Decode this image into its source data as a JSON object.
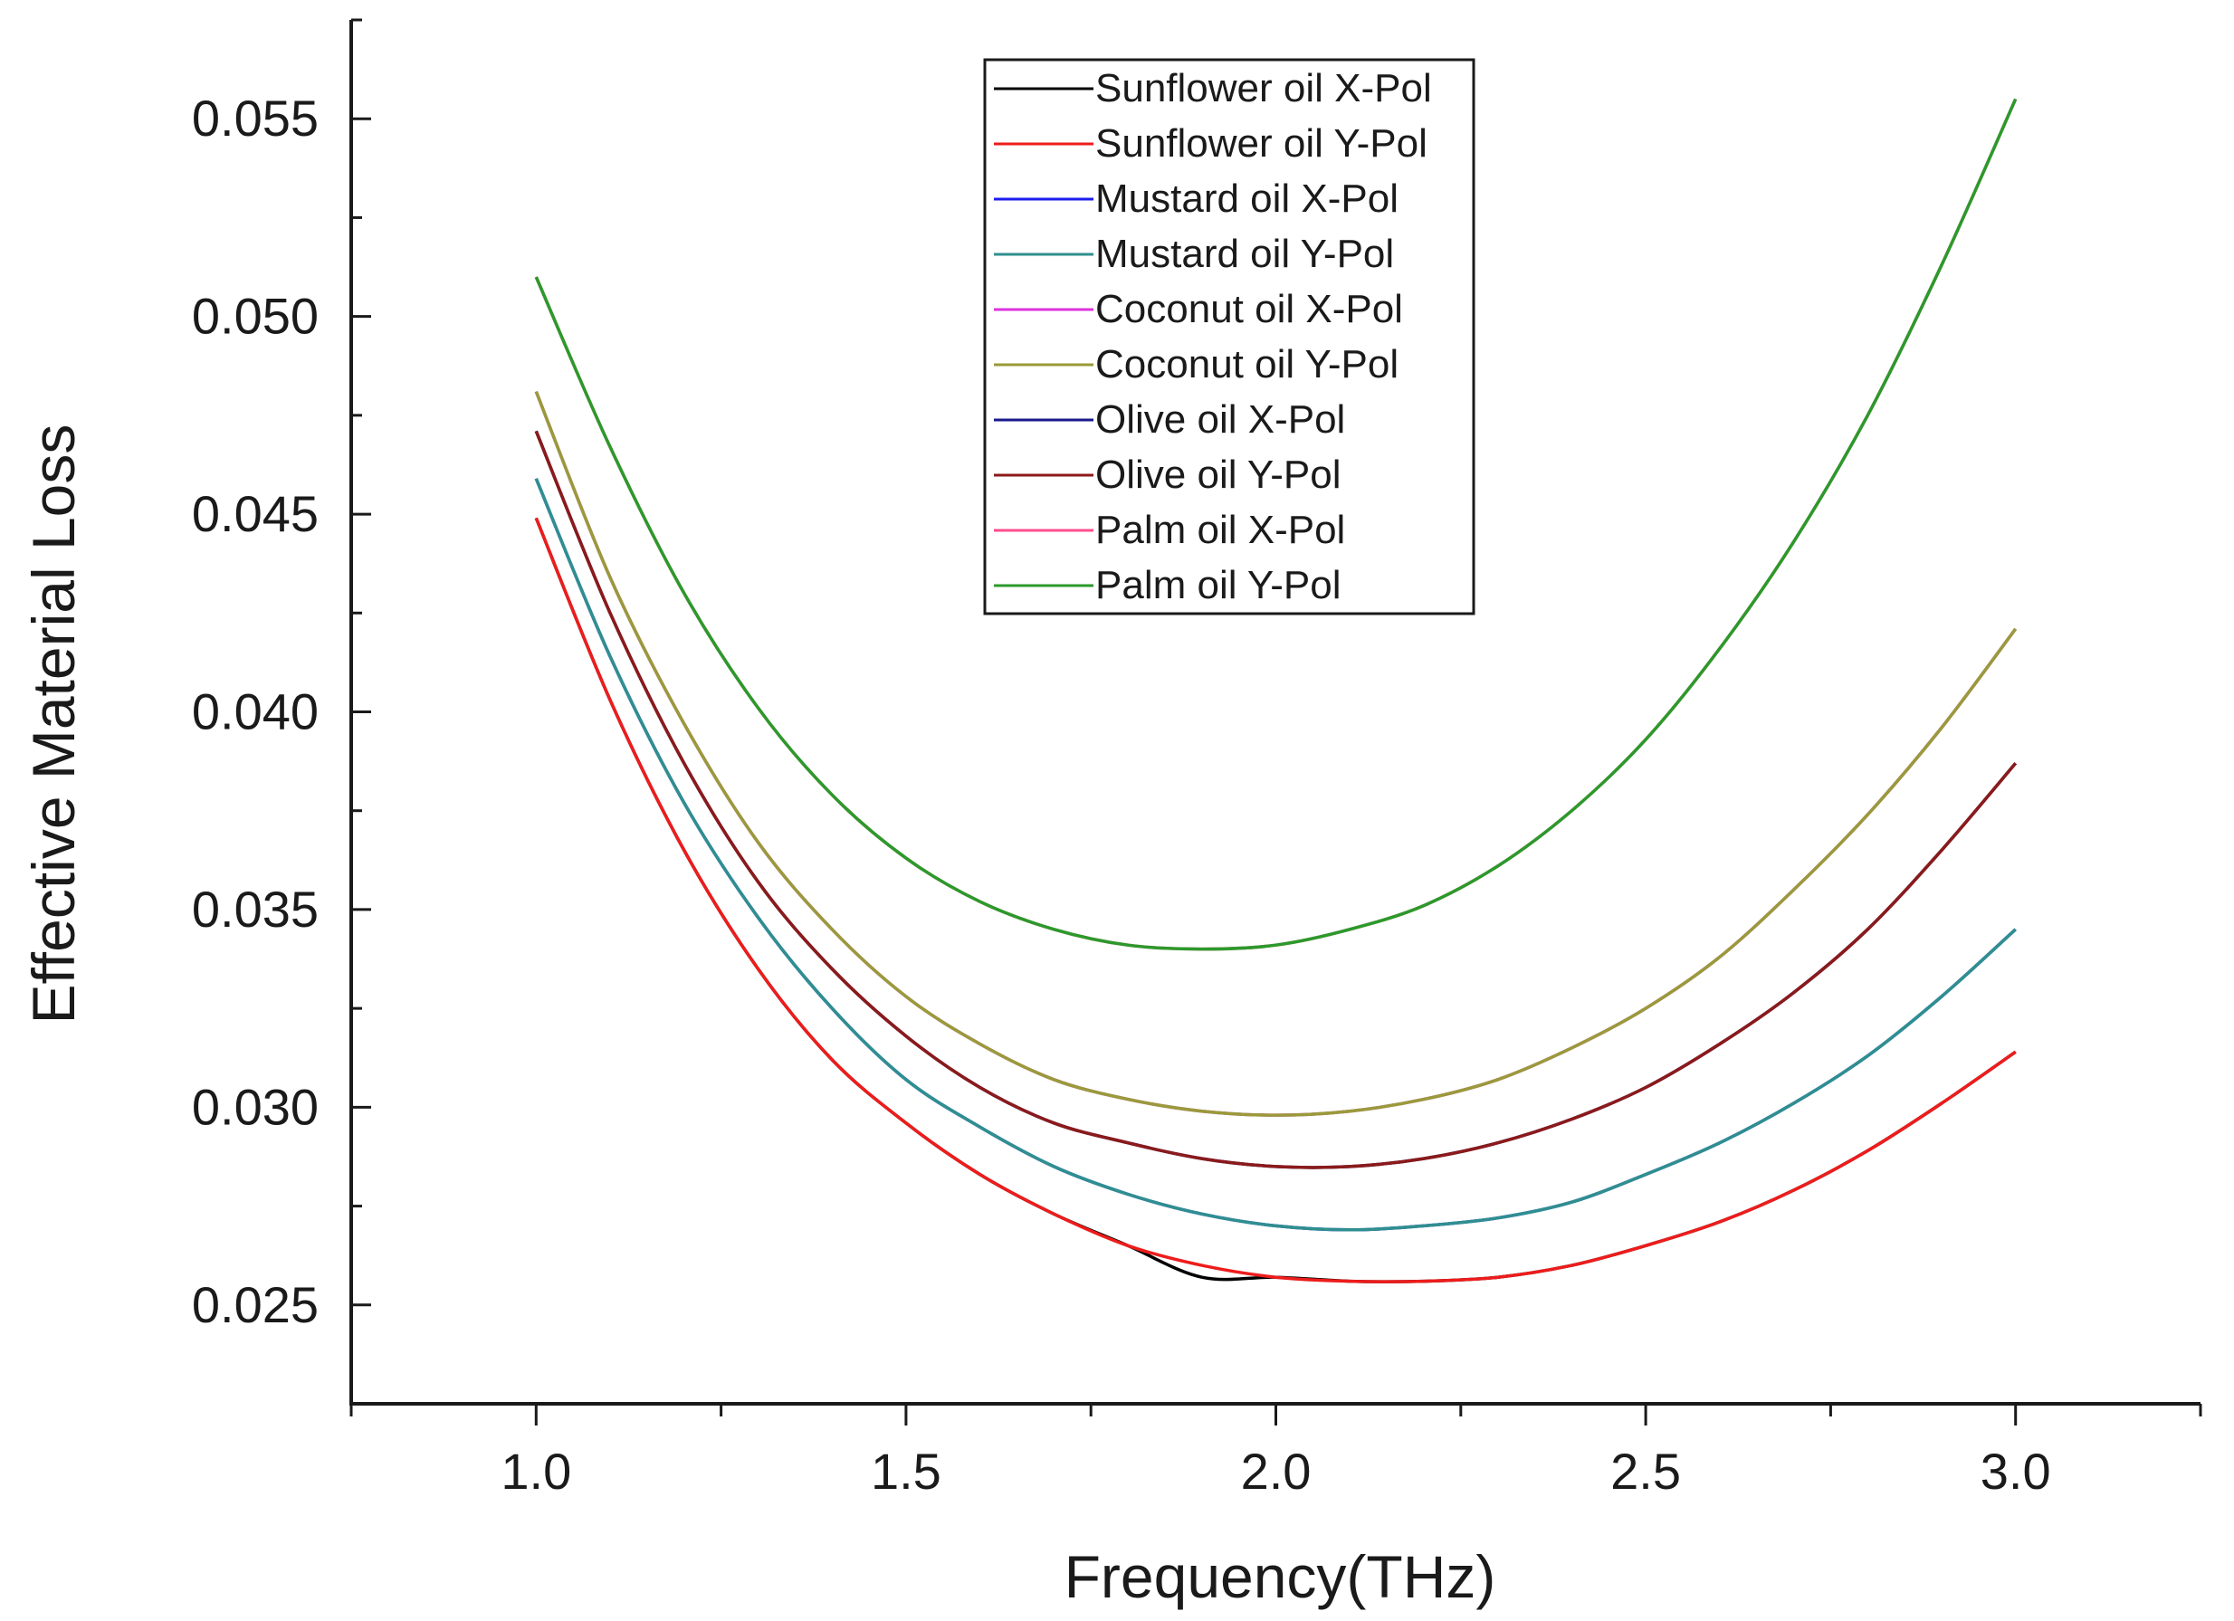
{
  "chart_data": {
    "type": "line",
    "title": "",
    "xlabel": "Frequency(THz)",
    "ylabel": "Effective Material Loss",
    "xlim": [
      0.75,
      3.25
    ],
    "ylim": [
      0.0225,
      0.0575
    ],
    "xticks": [
      1.0,
      1.5,
      2.0,
      2.5,
      3.0
    ],
    "xtick_labels": [
      "1.0",
      "1.5",
      "2.0",
      "2.5",
      "3.0"
    ],
    "yticks": [
      0.025,
      0.03,
      0.035,
      0.04,
      0.045,
      0.05,
      0.055
    ],
    "ytick_labels": [
      "0.025",
      "0.030",
      "0.035",
      "0.040",
      "0.045",
      "0.050",
      "0.055"
    ],
    "grid": false,
    "legend_position": "top-center",
    "x": [
      1.0,
      1.1,
      1.2,
      1.3,
      1.4,
      1.5,
      1.6,
      1.7,
      1.8,
      1.9,
      2.0,
      2.1,
      2.2,
      2.3,
      2.4,
      2.5,
      2.6,
      2.7,
      2.8,
      2.9,
      3.0
    ],
    "series": [
      {
        "name": "Sunflower oil X-Pol",
        "color": "#000000",
        "values": [
          0.0449,
          0.0403,
          0.0365,
          0.0335,
          0.0312,
          0.0296,
          0.0283,
          0.0273,
          0.0265,
          0.0257,
          0.0257,
          0.0256,
          0.0256,
          0.0257,
          0.026,
          0.0265,
          0.0271,
          0.0279,
          0.0289,
          0.0301,
          0.0314
        ]
      },
      {
        "name": "Sunflower oil Y-Pol",
        "color": "#ee1c1c",
        "values": [
          0.0449,
          0.0403,
          0.0365,
          0.0335,
          0.0312,
          0.0296,
          0.0283,
          0.0273,
          0.0265,
          0.026,
          0.0257,
          0.0256,
          0.0256,
          0.0257,
          0.026,
          0.0265,
          0.0271,
          0.0279,
          0.0289,
          0.0301,
          0.0314
        ]
      },
      {
        "name": "Mustard oil X-Pol",
        "color": "#1c1cee",
        "values": [
          0.0459,
          0.0414,
          0.0377,
          0.0348,
          0.0325,
          0.0307,
          0.0295,
          0.0285,
          0.0278,
          0.0273,
          0.027,
          0.0269,
          0.027,
          0.0272,
          0.0276,
          0.0283,
          0.0291,
          0.0301,
          0.0313,
          0.0328,
          0.0345
        ]
      },
      {
        "name": "Mustard oil Y-Pol",
        "color": "#2f8f8f",
        "values": [
          0.0459,
          0.0414,
          0.0377,
          0.0348,
          0.0325,
          0.0307,
          0.0295,
          0.0285,
          0.0278,
          0.0273,
          0.027,
          0.0269,
          0.027,
          0.0272,
          0.0276,
          0.0283,
          0.0291,
          0.0301,
          0.0313,
          0.0328,
          0.0345
        ]
      },
      {
        "name": "Coconut oil X-Pol",
        "color": "#dd33dd",
        "values": [
          0.0481,
          0.0434,
          0.0397,
          0.0367,
          0.0345,
          0.0328,
          0.0316,
          0.0307,
          0.0302,
          0.0299,
          0.0298,
          0.0299,
          0.0302,
          0.0307,
          0.0315,
          0.0325,
          0.0338,
          0.0355,
          0.0374,
          0.0396,
          0.0421
        ]
      },
      {
        "name": "Coconut oil Y-Pol",
        "color": "#9a9a3a",
        "values": [
          0.0481,
          0.0434,
          0.0397,
          0.0367,
          0.0345,
          0.0328,
          0.0316,
          0.0307,
          0.0302,
          0.0299,
          0.0298,
          0.0299,
          0.0302,
          0.0307,
          0.0315,
          0.0325,
          0.0338,
          0.0355,
          0.0374,
          0.0396,
          0.0421
        ]
      },
      {
        "name": "Olive oil X-Pol",
        "color": "#1a1a8c",
        "values": [
          0.0471,
          0.0425,
          0.0387,
          0.0357,
          0.0335,
          0.0318,
          0.0305,
          0.0296,
          0.0291,
          0.0287,
          0.0285,
          0.0285,
          0.0287,
          0.0291,
          0.0297,
          0.0305,
          0.0316,
          0.0329,
          0.0345,
          0.0365,
          0.0387
        ]
      },
      {
        "name": "Olive oil Y-Pol",
        "color": "#8b1a1a",
        "values": [
          0.0471,
          0.0425,
          0.0387,
          0.0357,
          0.0335,
          0.0318,
          0.0305,
          0.0296,
          0.0291,
          0.0287,
          0.0285,
          0.0285,
          0.0287,
          0.0291,
          0.0297,
          0.0305,
          0.0316,
          0.0329,
          0.0345,
          0.0365,
          0.0387
        ]
      },
      {
        "name": "Palm oil X-Pol",
        "color": "#ff4d8c",
        "values": [
          0.051,
          0.0467,
          0.043,
          0.0401,
          0.0379,
          0.0363,
          0.0352,
          0.0345,
          0.0341,
          0.034,
          0.0341,
          0.0345,
          0.0351,
          0.0361,
          0.0375,
          0.0393,
          0.0416,
          0.0443,
          0.0475,
          0.0513,
          0.0555
        ]
      },
      {
        "name": "Palm oil Y-Pol",
        "color": "#2b9a2b",
        "values": [
          0.051,
          0.0467,
          0.043,
          0.0401,
          0.0379,
          0.0363,
          0.0352,
          0.0345,
          0.0341,
          0.034,
          0.0341,
          0.0345,
          0.0351,
          0.0361,
          0.0375,
          0.0393,
          0.0416,
          0.0443,
          0.0475,
          0.0513,
          0.0555
        ]
      }
    ]
  }
}
